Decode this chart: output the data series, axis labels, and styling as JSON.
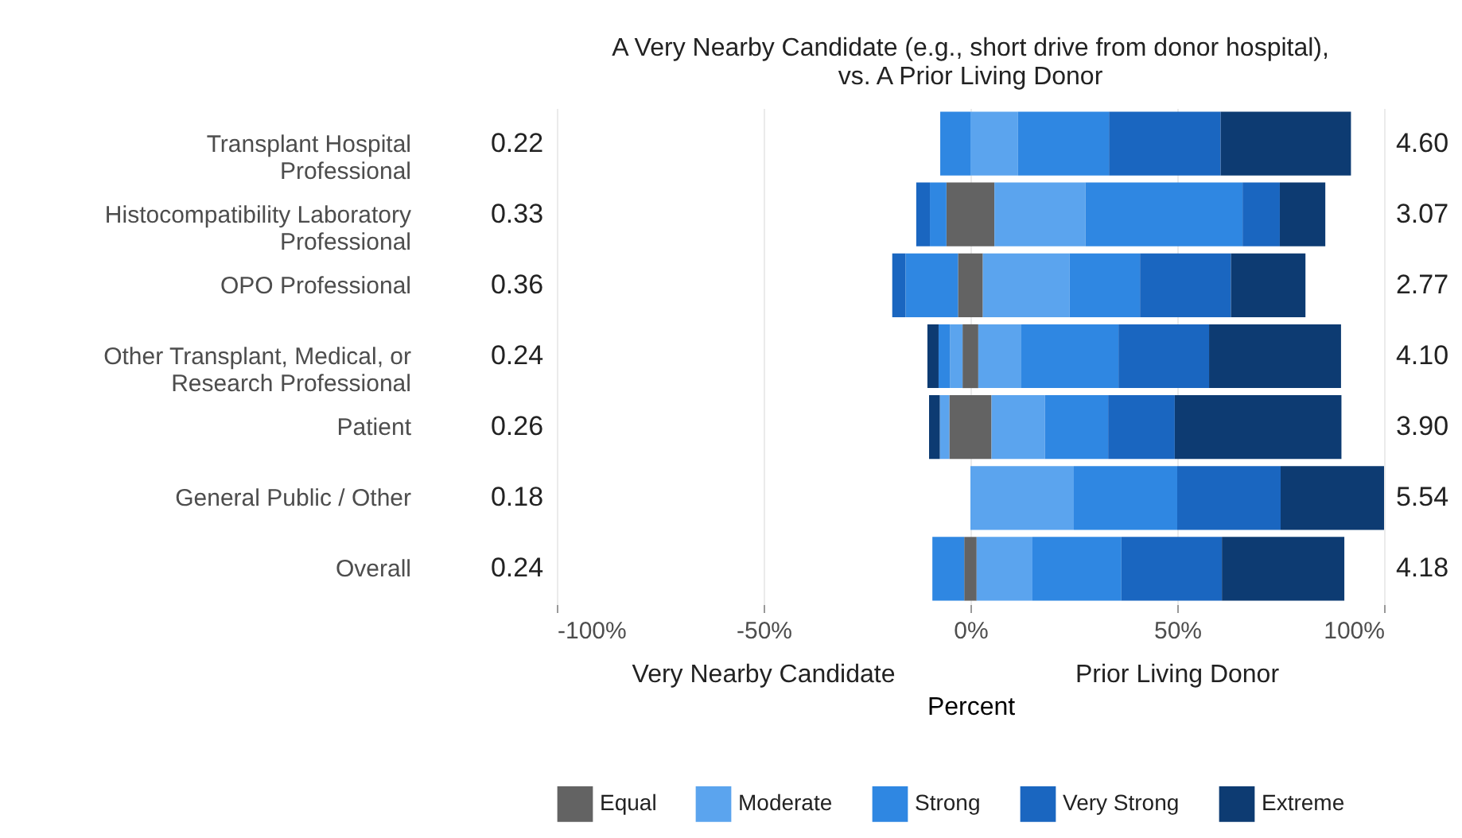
{
  "chart_data": {
    "type": "bar",
    "orientation": "horizontal",
    "stacked": true,
    "title": "A Very Nearby Candidate (e.g., short drive from donor hospital),\nvs. A Prior Living Donor",
    "xlabel": "Percent",
    "categories": [
      "Transplant Hospital Professional",
      "Histocompatibility Laboratory Professional",
      "OPO Professional",
      "Other Transplant, Medical, or Research Professional",
      "Patient",
      "General Public / Other",
      "Overall"
    ],
    "series": [
      {
        "name": "Equal",
        "color": "#636363",
        "values": [
          null,
          5.8,
          3,
          1.9,
          5.1,
          null,
          1.5
        ]
      },
      {
        "name": "Moderate",
        "color": "#5ba4ee",
        "values": [
          11.5,
          22,
          21,
          10.4,
          12.9,
          25,
          13.5
        ]
      },
      {
        "name": "Strong",
        "color": "#2f87e2",
        "values": [
          22,
          38,
          17,
          23.5,
          15.3,
          25,
          21.5
        ]
      },
      {
        "name": "Very Strong",
        "color": "#1a66c0",
        "values": [
          27,
          9,
          22,
          21.9,
          16.1,
          25,
          24.3
        ]
      },
      {
        "name": "Extreme",
        "color": "#0d3b72",
        "values": [
          31.5,
          11,
          18,
          31.9,
          40.3,
          25,
          29.6
        ]
      },
      {
        "color": "#636363",
        "values": [
          null,
          -5.8,
          -3,
          -1.9,
          -5.1,
          null,
          -1.5
        ]
      },
      {
        "color": "#5ba4ee",
        "values": [
          null,
          null,
          null,
          -3,
          -2.3,
          null,
          null
        ]
      },
      {
        "color": "#2f87e2",
        "values": [
          -7.3,
          -4,
          -12.7,
          -2.8,
          null,
          null,
          -7.7
        ]
      },
      {
        "color": "#1a66c0",
        "values": [
          null,
          -3.3,
          -3.2,
          null,
          null,
          null,
          null
        ]
      },
      {
        "color": "#0d3b72",
        "values": [
          null,
          null,
          null,
          -2.7,
          -2.6,
          null,
          null
        ]
      }
    ],
    "xlim": [
      -100,
      100
    ],
    "xticks": [
      {
        "value": -100,
        "label": "-100%"
      },
      {
        "value": -50,
        "label": "-50%"
      },
      {
        "value": 0,
        "label": "0%"
      },
      {
        "value": 50,
        "label": "50%"
      },
      {
        "value": 100,
        "label": "100%"
      }
    ],
    "grid": "x",
    "legend": "bottom",
    "annotations": [
      "Very Nearby Candidate",
      "Prior Living Donor",
      "0.22",
      "4.60",
      "0.33",
      "3.07",
      "0.36",
      "2.77",
      "0.24",
      "4.10",
      "0.26",
      "3.90",
      "0.18",
      "5.54",
      "0.24",
      "4.18"
    ]
  }
}
